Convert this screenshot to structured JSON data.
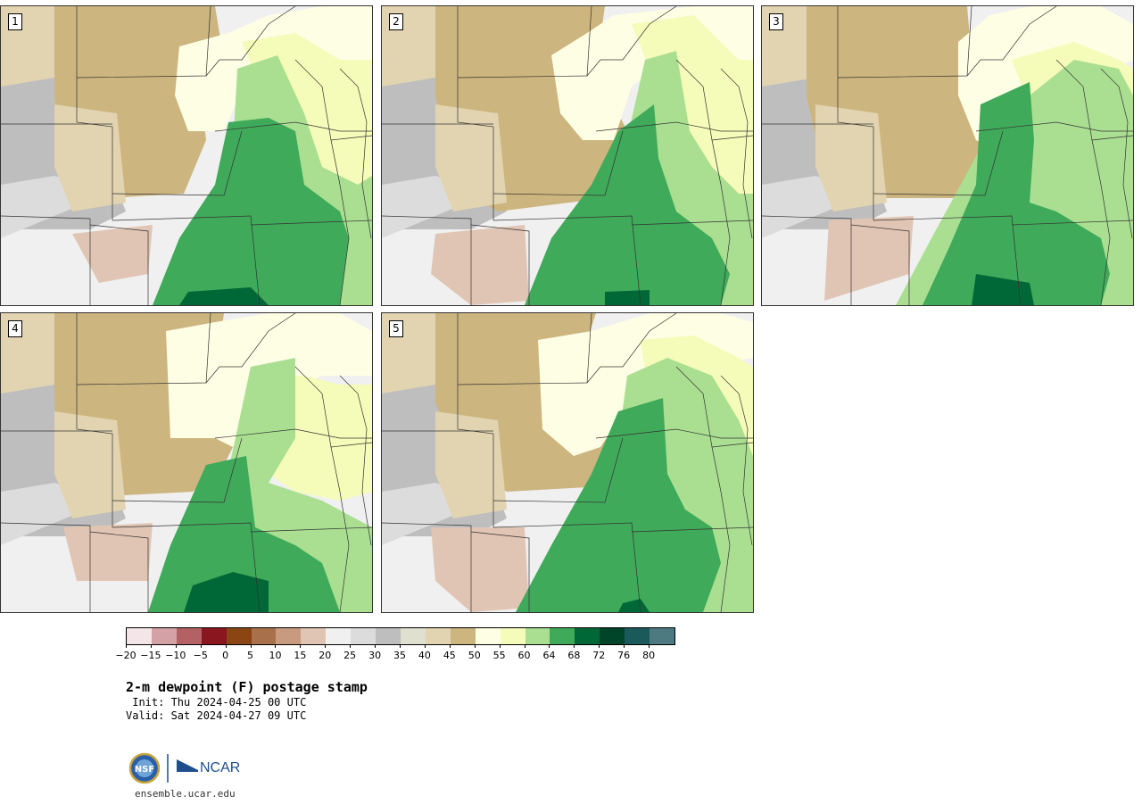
{
  "colors": {
    "bins": [
      "#f4e6e8",
      "#d4a2a6",
      "#b46166",
      "#8a1620",
      "#8b4513",
      "#a9714b",
      "#c89b81",
      "#e1c5b4",
      "#f0f0f0",
      "#dcdcdc",
      "#bebebe",
      "#e0e0d0",
      "#e2d4b0",
      "#ccb57e",
      "#fefee4",
      "#f5fbb8",
      "#aadf92",
      "#3faa5a",
      "#006837",
      "#004529",
      "#1b5a5a",
      "#4d7a80"
    ],
    "base": "#dcdcdc",
    "tan": "#ccb57e",
    "ltan": "#e2d4b0",
    "pink": "#e1c5b4",
    "white": "#f0f0f0",
    "grey": "#bebebe",
    "cream": "#fefee4",
    "yellow": "#f5fbb8",
    "lgreen": "#aadf92",
    "green": "#3faa5a",
    "dgreen": "#006837",
    "border": "#333333"
  },
  "panels": [
    {
      "number": "1"
    },
    {
      "number": "2"
    },
    {
      "number": "3"
    },
    {
      "number": "4"
    },
    {
      "number": "5"
    }
  ],
  "colorbar": {
    "tick_labels": [
      "−20",
      "−15",
      "−10",
      "−5",
      "0",
      "5",
      "10",
      "15",
      "20",
      "25",
      "30",
      "35",
      "40",
      "45",
      "50",
      "55",
      "60",
      "64",
      "68",
      "72",
      "76",
      "80"
    ]
  },
  "title": "2-m dewpoint (F) postage stamp",
  "init": " Init: Thu 2024-04-25 00 UTC",
  "valid": "Valid: Sat 2024-04-27 09 UTC",
  "logo": {
    "nsf_text": "NSF",
    "ncar_text": "NCAR"
  },
  "site": "ensemble.ucar.edu"
}
